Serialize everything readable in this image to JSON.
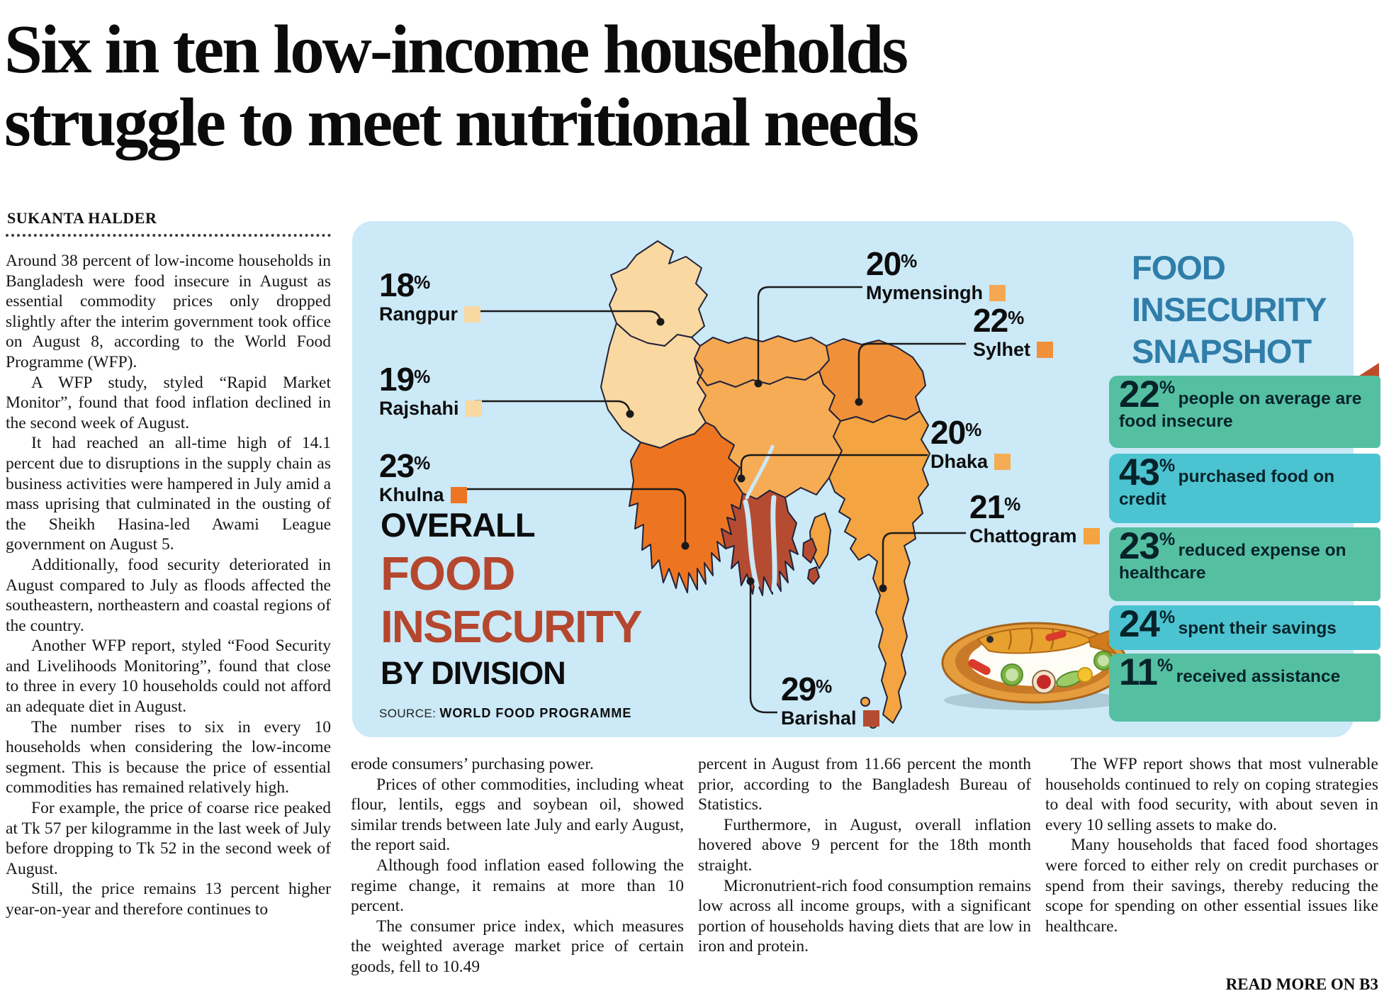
{
  "headline": {
    "line1": "Six in ten low-income households",
    "line2": "struggle to meet nutritional needs"
  },
  "byline": "SUKANTA HALDER",
  "article": {
    "col1": [
      "Around 38 percent of low-income households in Bangladesh were food insecure in August as essential commodity prices only dropped slightly after the interim government took office on August 8, according to the World Food Programme (WFP).",
      "A WFP study, styled “Rapid Market Monitor”, found that food inflation declined in the second week of August.",
      "It had reached an all-time high of 14.1 percent due to disruptions in the supply chain as business activities were hampered in July amid a mass uprising that culminated in the ousting of the Sheikh Hasina-led Awami League government on August 5.",
      "Additionally, food security deteriorated in August compared to July as floods affected the southeastern, northeastern and coastal regions of the country.",
      "Another WFP report, styled “Food Security and Livelihoods Monitoring”, found that close to three in every 10 households could not afford an adequate diet in August.",
      "The number rises to six in every 10 households when considering the low-income segment. This is because the price of essential commodities has remained relatively high.",
      "For example, the price of coarse rice peaked at Tk 57 per kilogramme in the last week of July before dropping to Tk 52 in the second week of August.",
      "Still, the price remains 13 percent higher year-on-year and therefore continues to"
    ],
    "col2": [
      "erode consumers’ purchasing power.",
      "Prices of other commodities, including wheat flour, lentils, eggs and soybean oil, showed similar trends between late July and early August, the report said.",
      "Although food inflation eased following the regime change, it remains at more than 10 percent.",
      "The consumer price index, which measures the weighted average market price of certain goods, fell to 10.49"
    ],
    "col3": [
      "percent in August from 11.66 percent the month prior, according to the Bangladesh Bureau of Statistics.",
      "Furthermore, in August, overall inflation hovered above 9 percent for the 18th month straight.",
      "Micronutrient-rich food consumption remains low across all income groups, with a significant portion of households having diets that are low in iron and protein."
    ],
    "col4": [
      "The WFP report shows that most vulnerable households continued to rely on coping strategies to deal with food security, with about seven in every 10 selling assets to make do.",
      "Many households that faced food shortages were forced to either rely on credit purchases or spend from their savings, thereby reducing the scope for spending on other essential issues like healthcare."
    ],
    "read_more": "READ MORE ON B3"
  },
  "infographic": {
    "title_overall": "OVERALL",
    "title_food": "FOOD",
    "title_insecurity": "INSECURITY",
    "title_by_division": "BY DIVISION",
    "source_label": "SOURCE:",
    "source_value": "WORLD FOOD PROGRAMME",
    "unit": "%",
    "accent_color": "#B5472E",
    "panel_color": "#CBE9F7",
    "divisions": [
      {
        "name": "Rangpur",
        "value": "18",
        "color": "#FAD8A1"
      },
      {
        "name": "Rajshahi",
        "value": "19",
        "color": "#FAD8A1"
      },
      {
        "name": "Khulna",
        "value": "23",
        "color": "#ED7522"
      },
      {
        "name": "Mymensingh",
        "value": "20",
        "color": "#F5A851"
      },
      {
        "name": "Sylhet",
        "value": "22",
        "color": "#F0913A"
      },
      {
        "name": "Dhaka",
        "value": "20",
        "color": "#F6AC55"
      },
      {
        "name": "Chattogram",
        "value": "21",
        "color": "#F4A440"
      },
      {
        "name": "Barishal",
        "value": "29",
        "color": "#B54C31"
      }
    ]
  },
  "chart_data": {
    "type": "map",
    "title": "OVERALL FOOD INSECURITY BY DIVISION",
    "source": "WORLD FOOD PROGRAMME",
    "categories": [
      "Rangpur",
      "Rajshahi",
      "Khulna",
      "Mymensingh",
      "Sylhet",
      "Dhaka",
      "Chattogram",
      "Barishal"
    ],
    "values": [
      18,
      19,
      23,
      20,
      22,
      20,
      21,
      29
    ],
    "unit": "percent"
  },
  "snapshot": {
    "title_color": "#2F7DA8",
    "title_lines": [
      "FOOD",
      "INSECURITY",
      "SNAPSHOT"
    ],
    "fold_color": "#BF4A2A",
    "cards": [
      {
        "value": "22",
        "unit": "%",
        "text": "people on average are food insecure",
        "color": "#55BFA2"
      },
      {
        "value": "43",
        "unit": "%",
        "text": "purchased food on credit",
        "color": "#4CC3D0"
      },
      {
        "value": "23",
        "unit": "%",
        "text": "reduced expense on healthcare",
        "color": "#55BFA2"
      },
      {
        "value": "24",
        "unit": "%",
        "text": "spent their savings",
        "color": "#4CC3D0"
      },
      {
        "value": "11",
        "unit": "%",
        "text": "received assistance",
        "color": "#55BFA2"
      }
    ]
  }
}
